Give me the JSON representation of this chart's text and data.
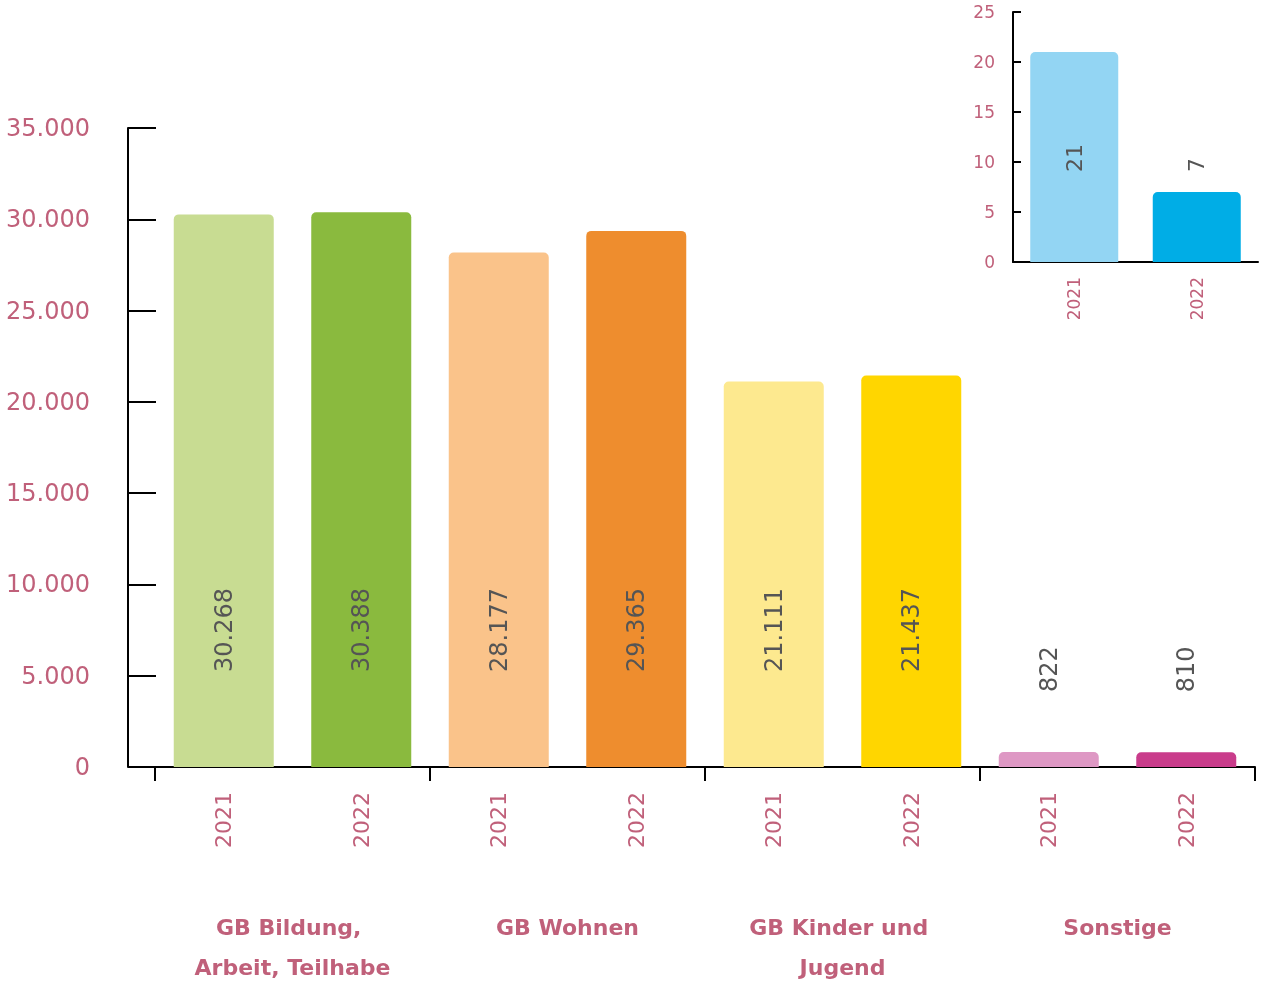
{
  "chart_data": [
    {
      "type": "bar",
      "categories": [
        "GB Bildung, Arbeit, Teilhabe",
        "GB Wohnen",
        "GB Kinder und Jugend",
        "Sonstige"
      ],
      "series": [
        {
          "name": "2021",
          "colors": [
            "#c8dc92",
            "#fac38a",
            "#fde98f",
            "#de98c4"
          ],
          "values": [
            30268,
            28177,
            21111,
            822
          ],
          "value_labels": [
            "30.268",
            "28.177",
            "21.111",
            "822"
          ]
        },
        {
          "name": "2022",
          "colors": [
            "#8aba3e",
            "#ee8d2e",
            "#ffd600",
            "#c93c8b"
          ],
          "values": [
            30388,
            29365,
            21437,
            810
          ],
          "value_labels": [
            "30.388",
            "29.365",
            "21.437",
            "810"
          ]
        }
      ],
      "ylim": [
        0,
        35000
      ],
      "yticks": [
        0,
        {
          "value": 5000,
          "label": "5.000"
        },
        {
          "value": 10000,
          "label": "10.000"
        },
        {
          "value": 15000,
          "label": "15.000"
        },
        {
          "value": 20000,
          "label": "20.000"
        },
        {
          "value": 25000,
          "label": "25.000"
        },
        {
          "value": 30000,
          "label": "30.000"
        },
        {
          "value": 35000,
          "label": "35.000"
        }
      ],
      "legend": false,
      "grid": false
    },
    {
      "type": "bar",
      "categories": [
        "2021",
        "2022"
      ],
      "values": [
        21,
        7
      ],
      "colors": [
        "#93d5f3",
        "#00ade6"
      ],
      "ylim": [
        0,
        25
      ],
      "yticks": [
        0,
        5,
        10,
        15,
        20,
        25
      ],
      "data_labels": true,
      "legend": false,
      "grid": false
    }
  ]
}
